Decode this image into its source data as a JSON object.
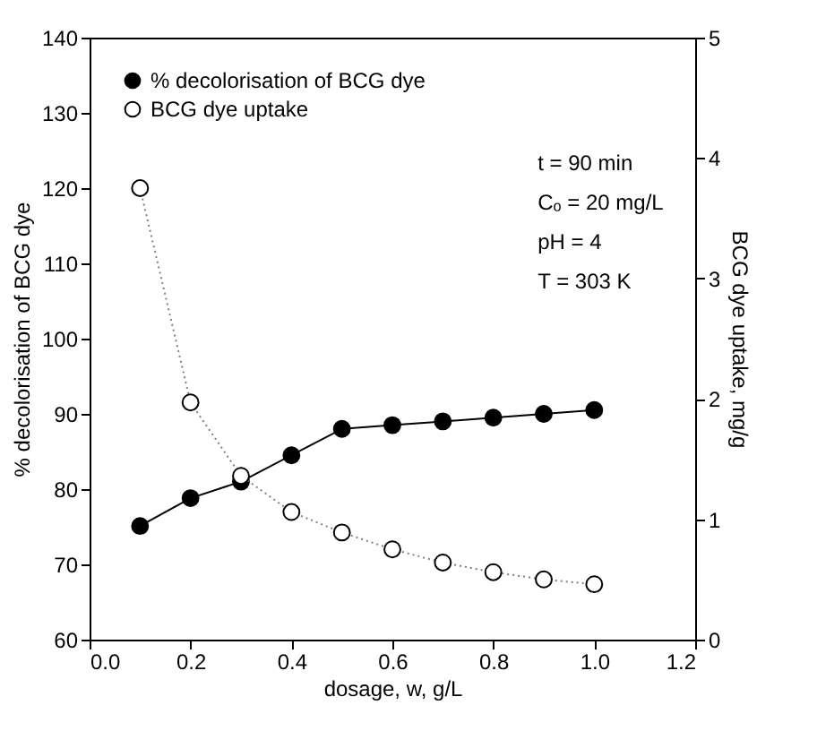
{
  "chart_data": {
    "type": "line",
    "xlabel": "dosage, w, g/L",
    "ylabel": "% decolorisation of BCG dye",
    "y2label": "BCG dye uptake, mg/g",
    "x": [
      0.1,
      0.2,
      0.3,
      0.4,
      0.5,
      0.6,
      0.7,
      0.8,
      0.9,
      1.0
    ],
    "series": [
      {
        "name": "% decolorisation of BCG dye",
        "color": "#000000",
        "line_style": "solid",
        "values": [
          75.1,
          78.8,
          81.0,
          84.5,
          88.0,
          88.5,
          89.0,
          89.5,
          90.0,
          90.5
        ]
      },
      {
        "name": "BCG dye uptake",
        "color": "#808080",
        "colors": [
          "#ffffff",
          "#ffffff",
          "#ffffff",
          "#ffffff",
          "#ffffff",
          "#ffffff",
          "#ffffff",
          "#ffffff",
          "#ffffff",
          "#ffffff"
        ],
        "line_style": "dotted",
        "axis": "y2",
        "values": [
          3.75,
          1.97,
          1.36,
          1.06,
          0.89,
          0.75,
          0.64,
          0.56,
          0.5,
          0.46
        ]
      }
    ],
    "marker": "circle",
    "xlim": [
      0.0,
      1.2
    ],
    "xticks": [
      {
        "value": 0,
        "label": "0.0"
      },
      0.2,
      0.4,
      0.6,
      0.8,
      {
        "value": 1,
        "label": "1.0"
      },
      1.2
    ],
    "ylim": [
      60,
      140
    ],
    "yticks": [
      60,
      70,
      80,
      90,
      100,
      110,
      120,
      130,
      140
    ],
    "y2lim": [
      0,
      5
    ],
    "y2ticks": [
      0,
      1,
      2,
      3,
      4,
      5
    ],
    "grid": false,
    "legend": "top left",
    "annotations": [
      "t = 90 min",
      "Cₒ = 20 mg/L",
      "pH = 4",
      "T = 303 K"
    ]
  }
}
